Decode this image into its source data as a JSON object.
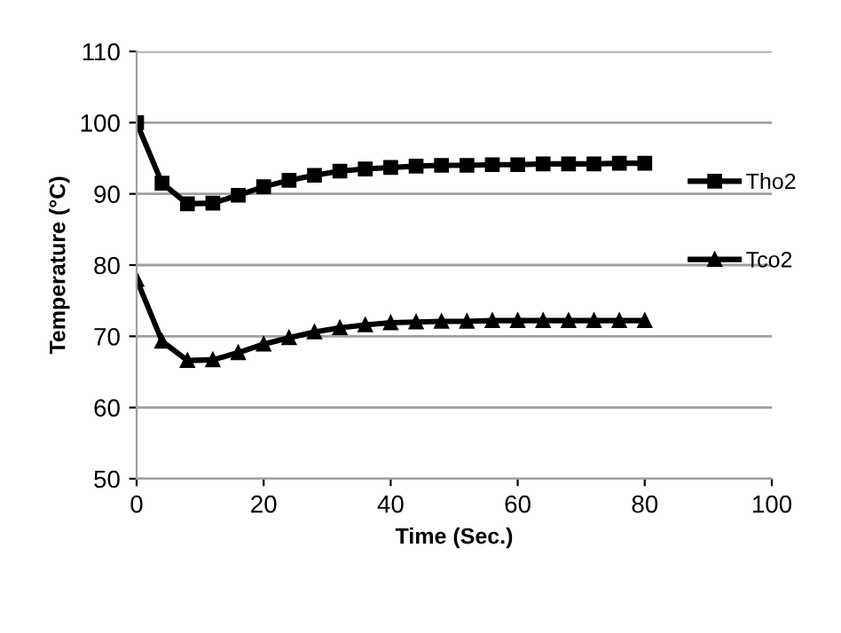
{
  "chart_data": {
    "type": "line",
    "xlabel": "Time (Sec.)",
    "ylabel": "Temperature (°C)",
    "x": [
      0,
      4,
      8,
      12,
      16,
      20,
      24,
      28,
      32,
      36,
      40,
      44,
      48,
      52,
      56,
      60,
      64,
      68,
      72,
      76,
      80
    ],
    "series": [
      {
        "name": "Tho2",
        "color": "#000000",
        "marker": "square",
        "values": [
          100,
          91.5,
          88.6,
          88.7,
          89.8,
          91.0,
          91.9,
          92.6,
          93.2,
          93.5,
          93.7,
          93.9,
          94.0,
          94.0,
          94.1,
          94.1,
          94.2,
          94.2,
          94.2,
          94.3,
          94.3
        ]
      },
      {
        "name": "Tco2",
        "color": "#000000",
        "marker": "triangle",
        "values": [
          78.0,
          69.3,
          66.6,
          66.7,
          67.7,
          68.9,
          69.8,
          70.6,
          71.2,
          71.6,
          71.9,
          72.0,
          72.1,
          72.1,
          72.2,
          72.2,
          72.2,
          72.2,
          72.2,
          72.2,
          72.2
        ]
      }
    ],
    "xlim": [
      0,
      100
    ],
    "xticks": [
      0,
      20,
      40,
      60,
      80,
      100
    ],
    "ylim": [
      50,
      110
    ],
    "yticks": [
      50,
      60,
      70,
      80,
      90,
      100,
      110
    ],
    "grid": "y",
    "legend": "right",
    "line_style": "solid"
  }
}
